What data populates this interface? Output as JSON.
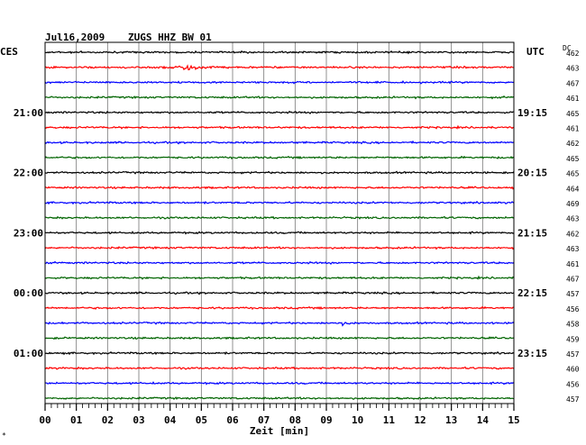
{
  "header": {
    "date": "Jul16,2009",
    "station": "ZUGS HHZ BW 01",
    "left_zone": "CES",
    "right_zone": "UTC",
    "dc_label": "DC"
  },
  "chart_data": {
    "type": "line",
    "title": "Jul16,2009   ZUGS HHZ BW 01",
    "xlabel": "Zeit [min]",
    "x_ticks": [
      "00",
      "01",
      "02",
      "03",
      "04",
      "05",
      "06",
      "07",
      "08",
      "09",
      "10",
      "11",
      "12",
      "13",
      "14",
      "15"
    ],
    "xlim": [
      0,
      15
    ],
    "rows_per_hour": 4,
    "colors": [
      "#000000",
      "#ff0000",
      "#0000ff",
      "#006400"
    ],
    "left_hour_labels": [
      "21:00",
      "22:00",
      "23:00",
      "00:00",
      "01:00"
    ],
    "right_hour_labels": [
      "19:15",
      "20:15",
      "21:15",
      "22:15",
      "23:15"
    ],
    "dc_values": [
      "462",
      "463",
      "467",
      "461",
      "465",
      "461",
      "462",
      "465",
      "465",
      "464",
      "469",
      "463",
      "462",
      "463",
      "461",
      "467",
      "457",
      "456",
      "458",
      "459",
      "457",
      "460",
      "456",
      "457"
    ],
    "events": [
      {
        "row": 1,
        "minute": 4.5,
        "note": "burst"
      },
      {
        "row": 18,
        "minute": 9.5,
        "note": "small burst"
      }
    ]
  },
  "footer": {
    "corner_mark": "*"
  }
}
